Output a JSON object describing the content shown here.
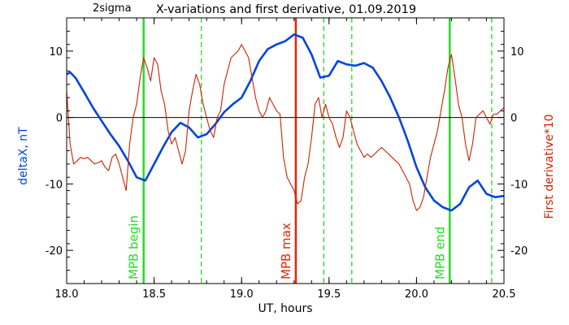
{
  "chart_data": {
    "type": "line",
    "corner_label": "2sigma",
    "title": "X-variations and first derivative, 01.09.2019",
    "xlabel": "UT, hours",
    "ylabel_left": "deltaX, nT",
    "ylabel_right": "First derivative*10",
    "xlim": [
      18.0,
      20.5
    ],
    "ylim": [
      -25,
      15
    ],
    "x_ticks": [
      "18.0",
      "18.5",
      "19.0",
      "19.5",
      "20.0",
      "20.5"
    ],
    "x_tick_values": [
      18.0,
      18.5,
      19.0,
      19.5,
      20.0,
      20.5
    ],
    "y_ticks_left": [
      "10",
      "0",
      "-10",
      "-20"
    ],
    "y_ticks_right": [
      "10",
      "0",
      "-10",
      "-20"
    ],
    "y_tick_values": [
      10,
      0,
      -10,
      -20
    ],
    "grid": false,
    "zero_line": 0,
    "series": [
      {
        "color": "#0044dd",
        "x": [
          18.0,
          18.02,
          18.05,
          18.1,
          18.15,
          18.2,
          18.25,
          18.3,
          18.35,
          18.4,
          18.45,
          18.5,
          18.55,
          18.6,
          18.65,
          18.7,
          18.75,
          18.8,
          18.85,
          18.9,
          18.95,
          19.0,
          19.05,
          19.1,
          19.15,
          19.2,
          19.25,
          19.3,
          19.35,
          19.4,
          19.45,
          19.5,
          19.55,
          19.6,
          19.65,
          19.7,
          19.75,
          19.8,
          19.85,
          19.9,
          19.95,
          20.0,
          20.05,
          20.1,
          20.15,
          20.2,
          20.25,
          20.3,
          20.35,
          20.4,
          20.45,
          20.5
        ],
        "values": [
          6.5,
          6.8,
          6.0,
          3.8,
          1.5,
          -0.5,
          -2.5,
          -4.3,
          -6.5,
          -9.0,
          -9.5,
          -7.0,
          -4.5,
          -2.2,
          -0.8,
          -1.5,
          -3.0,
          -2.5,
          -1.0,
          0.8,
          2.0,
          3.0,
          5.5,
          8.5,
          10.3,
          11.0,
          11.5,
          12.5,
          12.0,
          9.5,
          6.0,
          6.3,
          8.5,
          8.0,
          7.8,
          8.2,
          7.5,
          5.5,
          3.0,
          0.0,
          -3.5,
          -7.5,
          -10.5,
          -12.5,
          -13.5,
          -14.0,
          -13.0,
          -10.5,
          -9.5,
          -11.5,
          -12.0,
          -11.8
        ]
      },
      {
        "color": "#cc2200",
        "x": [
          18.0,
          18.02,
          18.04,
          18.06,
          18.08,
          18.1,
          18.12,
          18.14,
          18.16,
          18.18,
          18.2,
          18.22,
          18.24,
          18.26,
          18.28,
          18.3,
          18.32,
          18.34,
          18.36,
          18.38,
          18.4,
          18.42,
          18.44,
          18.46,
          18.48,
          18.5,
          18.52,
          18.54,
          18.56,
          18.58,
          18.6,
          18.62,
          18.64,
          18.66,
          18.68,
          18.7,
          18.72,
          18.74,
          18.76,
          18.78,
          18.8,
          18.82,
          18.84,
          18.86,
          18.88,
          18.9,
          18.92,
          18.94,
          18.96,
          18.98,
          19.0,
          19.02,
          19.04,
          19.06,
          19.08,
          19.1,
          19.12,
          19.14,
          19.16,
          19.18,
          19.2,
          19.22,
          19.24,
          19.26,
          19.28,
          19.3,
          19.32,
          19.34,
          19.36,
          19.38,
          19.4,
          19.42,
          19.44,
          19.46,
          19.48,
          19.5,
          19.52,
          19.54,
          19.56,
          19.58,
          19.6,
          19.62,
          19.64,
          19.66,
          19.68,
          19.7,
          19.72,
          19.74,
          19.76,
          19.78,
          19.8,
          19.82,
          19.84,
          19.86,
          19.88,
          19.9,
          19.92,
          19.94,
          19.96,
          19.98,
          20.0,
          20.02,
          20.04,
          20.06,
          20.08,
          20.1,
          20.12,
          20.14,
          20.16,
          20.18,
          20.2,
          20.22,
          20.24,
          20.26,
          20.28,
          20.3,
          20.32,
          20.34,
          20.36,
          20.38,
          20.4,
          20.42,
          20.44,
          20.46,
          20.48,
          20.5
        ],
        "values": [
          4.0,
          -4.0,
          -7.0,
          -6.5,
          -6.0,
          -6.2,
          -6.0,
          -6.5,
          -7.0,
          -6.8,
          -6.5,
          -7.5,
          -8.0,
          -6.0,
          -5.5,
          -7.0,
          -9.0,
          -11.0,
          -4.0,
          0.0,
          2.0,
          6.0,
          9.0,
          7.5,
          5.5,
          9.0,
          8.0,
          4.0,
          2.0,
          -2.0,
          -4.0,
          -3.0,
          -5.0,
          -7.0,
          -5.0,
          1.0,
          4.0,
          6.5,
          5.0,
          2.0,
          0.0,
          -2.0,
          -3.0,
          0.0,
          1.0,
          5.0,
          7.0,
          9.0,
          9.5,
          10.0,
          11.0,
          10.0,
          9.0,
          6.0,
          3.0,
          1.0,
          0.0,
          1.0,
          3.0,
          2.0,
          1.0,
          0.5,
          -6.0,
          -9.0,
          -10.0,
          -11.0,
          -13.0,
          -12.5,
          -9.0,
          -7.0,
          -3.0,
          2.0,
          3.0,
          0.0,
          2.0,
          0.0,
          -1.0,
          -3.0,
          -4.5,
          -3.0,
          1.0,
          0.0,
          -2.0,
          -4.0,
          -5.0,
          -6.0,
          -5.5,
          -6.0,
          -5.5,
          -5.0,
          -4.5,
          -5.0,
          -5.5,
          -6.0,
          -6.5,
          -7.0,
          -8.0,
          -9.0,
          -10.0,
          -12.5,
          -14.0,
          -13.5,
          -12.0,
          -9.0,
          -6.0,
          -4.0,
          -2.0,
          1.0,
          4.0,
          7.5,
          9.5,
          6.0,
          2.0,
          0.0,
          -4.0,
          -6.5,
          -4.0,
          0.0,
          0.5,
          1.0,
          0.0,
          -1.0,
          0.5,
          0.5,
          1.0,
          1.5
        ]
      }
    ],
    "markers": [
      {
        "x": 18.44,
        "color": "#22dd22",
        "style": "solid",
        "label": "MPB begin"
      },
      {
        "x": 18.77,
        "color": "#22dd22",
        "style": "dashed",
        "label": ""
      },
      {
        "x": 19.31,
        "color": "#ee2200",
        "style": "solid",
        "label": "MPB max"
      },
      {
        "x": 19.47,
        "color": "#22dd22",
        "style": "dashed",
        "label": ""
      },
      {
        "x": 19.63,
        "color": "#22dd22",
        "style": "dashed",
        "label": ""
      },
      {
        "x": 20.19,
        "color": "#22dd22",
        "style": "solid",
        "label": "MPB end"
      },
      {
        "x": 20.43,
        "color": "#22dd22",
        "style": "dashed",
        "label": ""
      }
    ],
    "colors": {
      "axis": "#000000",
      "left_label": "#0044dd",
      "right_label": "#cc2200"
    }
  }
}
